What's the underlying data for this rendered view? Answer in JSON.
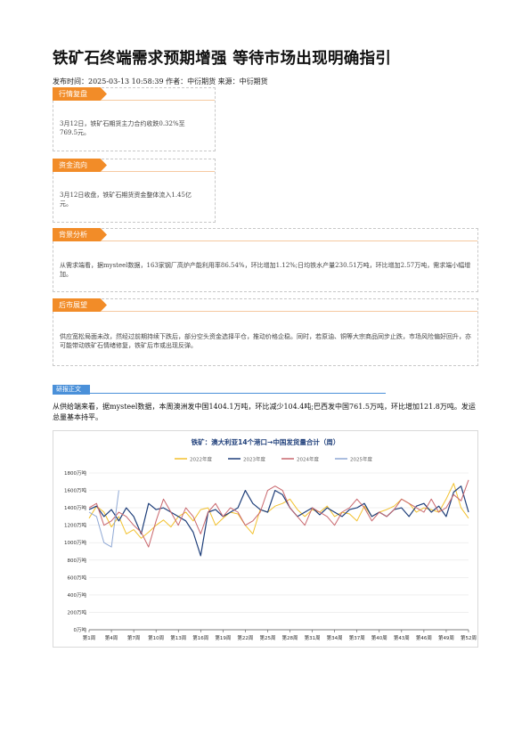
{
  "article": {
    "title": "铁矿石终端需求预期增强 等待市场出现明确指引",
    "meta": "发布时间：2025-03-13 10:58:39 作者：中衍期货 来源：中衍期货"
  },
  "sections": {
    "review": {
      "tag": "行情复盘",
      "text": "3月12日，铁矿石期货主力合约收跌0.32%至769.5元。"
    },
    "funds": {
      "tag": "资金流向",
      "text": "3月12日收盘，铁矿石期货资金整体流入1.45亿元。"
    },
    "background": {
      "tag": "背景分析",
      "text": "从需求端看，据mysteel数据，163家钢厂高炉产能利用率86.54%，环比增加1.12%;日均铁水产量230.51万吨，环比增加2.57万吨，需求端小幅增加。"
    },
    "outlook": {
      "tag": "后市展望",
      "text": "供应宽松局面未改，然经过前期持续下跌后，部分空头资金选择平仓，推动价格企稳。同时，若原油、铜等大宗商品同步止跌，市场风险偏好回升，亦可能带动铁矿石情绪修复，铁矿后市或出现反弹。"
    }
  },
  "research": {
    "tag": "研报正文",
    "text": "从供给端来看，据mysteel数据，本周澳洲发中国1404.1万吨，环比减少104.4吨;巴西发中国761.5万吨，环比增加121.8万吨。发运总量基本持平。"
  },
  "chart_data": {
    "type": "line",
    "title": "铁矿：澳大利亚14个港口→中国发货量合计（周）",
    "ylim": [
      0,
      1800
    ],
    "yticks": [
      "0万吨",
      "200万吨",
      "400万吨",
      "600万吨",
      "800万吨",
      "1000万吨",
      "1200万吨",
      "1400万吨",
      "1600万吨",
      "1800万吨"
    ],
    "xticks": [
      "第1周",
      "第4周",
      "第7周",
      "第10周",
      "第13周",
      "第16周",
      "第19周",
      "第22周",
      "第25周",
      "第28周",
      "第31周",
      "第34周",
      "第37周",
      "第40周",
      "第43周",
      "第46周",
      "第49周",
      "第52周"
    ],
    "xtick_weeks": [
      1,
      4,
      7,
      10,
      13,
      16,
      19,
      22,
      25,
      28,
      31,
      34,
      37,
      40,
      43,
      46,
      49,
      52
    ],
    "colors": {
      "2022年度": "#f2c12e",
      "2023年度": "#1f3f7a",
      "2024年度": "#c9676d",
      "2025年度": "#8fa8d4"
    },
    "series": [
      {
        "name": "2022年度",
        "values": [
          1280,
          1420,
          1350,
          1180,
          1300,
          1100,
          1150,
          1050,
          1120,
          1200,
          1260,
          1180,
          1300,
          1350,
          1250,
          1380,
          1400,
          1200,
          1280,
          1350,
          1330,
          1200,
          1100,
          1380,
          1350,
          1420,
          1450,
          1500,
          1380,
          1300,
          1380,
          1350,
          1420,
          1300,
          1350,
          1330,
          1250,
          1420,
          1300,
          1350,
          1380,
          1420,
          1500,
          1450,
          1350,
          1400,
          1380,
          1350,
          1500,
          1680,
          1400,
          1280
        ]
      },
      {
        "name": "2023年度",
        "values": [
          1380,
          1420,
          1300,
          1380,
          1250,
          1400,
          1300,
          1100,
          1450,
          1380,
          1400,
          1350,
          1300,
          1250,
          1120,
          850,
          1350,
          1380,
          1300,
          1350,
          1400,
          1600,
          1450,
          1380,
          1350,
          1600,
          1550,
          1400,
          1300,
          1350,
          1400,
          1320,
          1400,
          1350,
          1300,
          1380,
          1400,
          1450,
          1300,
          1350,
          1300,
          1380,
          1400,
          1300,
          1420,
          1450,
          1350,
          1420,
          1300,
          1580,
          1650,
          1350
        ]
      },
      {
        "name": "2024年度",
        "values": [
          1400,
          1450,
          1200,
          1250,
          1350,
          1300,
          1200,
          1120,
          950,
          1250,
          1500,
          1350,
          1200,
          1400,
          1300,
          1100,
          1350,
          1450,
          1300,
          1400,
          1350,
          1200,
          1250,
          1350,
          1600,
          1650,
          1600,
          1400,
          1300,
          1200,
          1400,
          1350,
          1300,
          1200,
          1350,
          1400,
          1500,
          1400,
          1250,
          1350,
          1300,
          1380,
          1500,
          1450,
          1400,
          1350,
          1500,
          1350,
          1400,
          1550,
          1480,
          1720
        ]
      },
      {
        "name": "2025年度",
        "values": [
          1350,
          1300,
          1000,
          950,
          1600
        ]
      }
    ]
  }
}
